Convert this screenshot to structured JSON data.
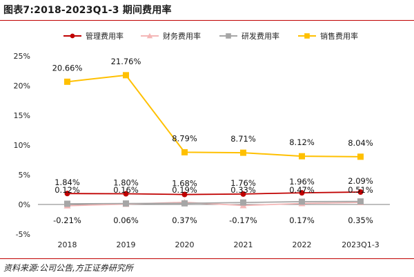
{
  "header": {
    "title": "图表7:2018-2023Q1-3 期间费用率"
  },
  "footer": {
    "source": "资料来源:公司公告,方正证券研究所"
  },
  "chart_data": {
    "type": "line",
    "categories": [
      "2018",
      "2019",
      "2020",
      "2021",
      "2022",
      "2023Q1-3"
    ],
    "y_ticks": [
      "25%",
      "20%",
      "15%",
      "10%",
      "5%",
      "0%",
      "-5%"
    ],
    "ylim": [
      -5,
      25
    ],
    "y_unit": "%",
    "grid": false,
    "legend_position": "top",
    "series": [
      {
        "name": "管理费用率",
        "color": "#c00000",
        "marker": "circle",
        "values": [
          1.84,
          1.8,
          1.68,
          1.76,
          1.96,
          2.09
        ],
        "labels": [
          "1.84%",
          "1.80%",
          "1.68%",
          "1.76%",
          "1.96%",
          "2.09%"
        ]
      },
      {
        "name": "财务费用率",
        "color": "#f4b6b6",
        "marker": "triangle",
        "values": [
          -0.21,
          0.06,
          0.37,
          -0.17,
          0.17,
          0.35
        ],
        "labels": [
          "-0.21%",
          "0.06%",
          "0.37%",
          "-0.17%",
          "0.17%",
          "0.35%"
        ]
      },
      {
        "name": "研发费用率",
        "color": "#a6a6a6",
        "marker": "square",
        "values": [
          0.12,
          0.16,
          0.19,
          0.33,
          0.47,
          0.51
        ],
        "labels": [
          "0.12%",
          "0.16%",
          "0.19%",
          "0.33%",
          "0.47%",
          "0.51%"
        ]
      },
      {
        "name": "销售费用率",
        "color": "#ffc000",
        "marker": "square",
        "values": [
          20.66,
          21.76,
          8.79,
          8.71,
          8.12,
          8.04
        ],
        "labels": [
          "20.66%",
          "21.76%",
          "8.79%",
          "8.71%",
          "8.12%",
          "8.04%"
        ]
      }
    ]
  }
}
